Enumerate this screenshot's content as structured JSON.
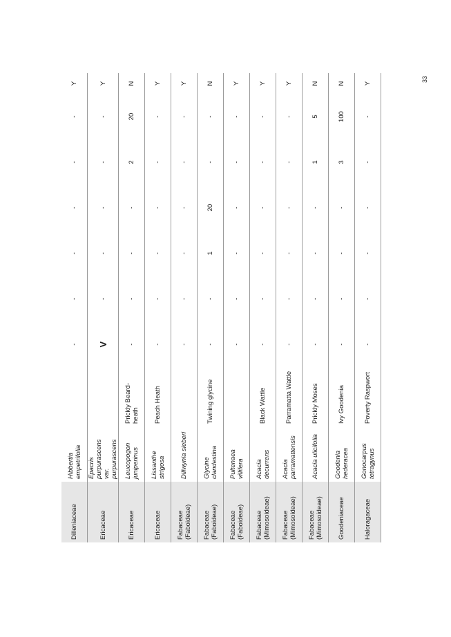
{
  "page_number": "33",
  "rows": [
    {
      "family": "Dilleniaceae",
      "scientific": "Hibbertia empetrifolia",
      "common": "",
      "c1": "-",
      "c2": "-",
      "c3": "-",
      "c4": "-",
      "c5": "-",
      "c6": "-",
      "native": "Y"
    },
    {
      "family": "Ericaceae",
      "scientific": "Epacris purpurascens var. purpurascens",
      "common": "",
      "c1": "V",
      "c2": "-",
      "c3": "-",
      "c4": "-",
      "c5": "-",
      "c6": "-",
      "native": "Y"
    },
    {
      "family": "Ericaceae",
      "scientific": "Leucopogon juniperinus",
      "common": "Prickly Beard-heath",
      "c1": "-",
      "c2": "-",
      "c3": "-",
      "c4": "-",
      "c5": "2",
      "c6": "20",
      "native": "N"
    },
    {
      "family": "Ericaceae",
      "scientific": "Lissanthe strigosa",
      "common": "Peach Heath",
      "c1": "-",
      "c2": "-",
      "c3": "-",
      "c4": "-",
      "c5": "-",
      "c6": "-",
      "native": "Y"
    },
    {
      "family": "Fabaceae (Faboideae)",
      "scientific": "Dillwynia sieberi",
      "common": "",
      "c1": "-",
      "c2": "-",
      "c3": "-",
      "c4": "-",
      "c5": "-",
      "c6": "-",
      "native": "Y"
    },
    {
      "family": "Fabaceae (Faboideae)",
      "scientific": "Glycine clandestina",
      "common": "Twining glycine",
      "c1": "-",
      "c2": "-",
      "c3": "1",
      "c4": "20",
      "c5": "-",
      "c6": "-",
      "native": "N"
    },
    {
      "family": "Fabaceae (Faboideae)",
      "scientific": "Pultenaea villifera",
      "common": "",
      "c1": "-",
      "c2": "-",
      "c3": "-",
      "c4": "-",
      "c5": "-",
      "c6": "-",
      "native": "Y"
    },
    {
      "family": "Fabaceae (Mimosoideae)",
      "scientific": "Acacia decurrens",
      "common": "Black Wattle",
      "c1": "-",
      "c2": "-",
      "c3": "-",
      "c4": "-",
      "c5": "-",
      "c6": "-",
      "native": "Y"
    },
    {
      "family": "Fabaceae (Mimosoideae)",
      "scientific": "Acacia parramattensis",
      "common": "Parramatta Wattle",
      "c1": "-",
      "c2": "-",
      "c3": "-",
      "c4": "-",
      "c5": "-",
      "c6": "-",
      "native": "Y"
    },
    {
      "family": "Fabaceae (Mimosoideae)",
      "scientific": "Acacia ulicifolia",
      "common": "Prickly Moses",
      "c1": "-",
      "c2": "-",
      "c3": "-",
      "c4": "-",
      "c5": "1",
      "c6": "5",
      "native": "N"
    },
    {
      "family": "Goodeniaceae",
      "scientific": "Goodenia hederacea",
      "common": "Ivy Goodenia",
      "c1": "-",
      "c2": "-",
      "c3": "-",
      "c4": "-",
      "c5": "3",
      "c6": "100",
      "native": "N"
    },
    {
      "family": "Haloragaceae",
      "scientific": "Gonocarpus tetragynus",
      "common": "Poverty Raspwort",
      "c1": "-",
      "c2": "-",
      "c3": "-",
      "c4": "-",
      "c5": "-",
      "c6": "-",
      "native": "Y"
    }
  ]
}
